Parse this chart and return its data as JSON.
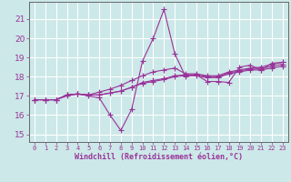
{
  "xlabel": "Windchill (Refroidissement éolien,°C)",
  "bg_color": "#cce8e8",
  "grid_color": "#ffffff",
  "line_color": "#993399",
  "marker": "+",
  "markersize": 4,
  "linewidth": 0.8,
  "xlim": [
    -0.5,
    23.5
  ],
  "ylim": [
    14.6,
    21.9
  ],
  "yticks": [
    15,
    16,
    17,
    18,
    19,
    20,
    21
  ],
  "xticks": [
    0,
    1,
    2,
    3,
    4,
    5,
    6,
    7,
    8,
    9,
    10,
    11,
    12,
    13,
    14,
    15,
    16,
    17,
    18,
    19,
    20,
    21,
    22,
    23
  ],
  "series": [
    [
      16.8,
      16.8,
      16.8,
      17.0,
      17.1,
      17.0,
      16.9,
      16.0,
      15.2,
      16.3,
      18.8,
      20.0,
      21.5,
      19.2,
      18.0,
      18.1,
      17.75,
      17.75,
      17.7,
      18.5,
      18.6,
      18.35,
      18.7,
      18.75
    ],
    [
      16.8,
      16.8,
      16.8,
      17.05,
      17.1,
      17.05,
      17.2,
      17.35,
      17.55,
      17.8,
      18.05,
      18.25,
      18.35,
      18.45,
      18.15,
      18.15,
      18.05,
      18.05,
      18.25,
      18.35,
      18.45,
      18.5,
      18.65,
      18.75
    ],
    [
      16.8,
      16.8,
      16.8,
      17.05,
      17.1,
      17.05,
      17.05,
      17.15,
      17.25,
      17.45,
      17.7,
      17.8,
      17.9,
      18.05,
      18.1,
      18.1,
      18.0,
      18.0,
      18.2,
      18.3,
      18.4,
      18.4,
      18.55,
      18.65
    ],
    [
      16.8,
      16.8,
      16.8,
      17.05,
      17.1,
      17.05,
      17.05,
      17.15,
      17.25,
      17.45,
      17.65,
      17.75,
      17.85,
      18.0,
      18.05,
      18.05,
      17.95,
      17.95,
      18.15,
      18.25,
      18.35,
      18.35,
      18.45,
      18.55
    ]
  ]
}
